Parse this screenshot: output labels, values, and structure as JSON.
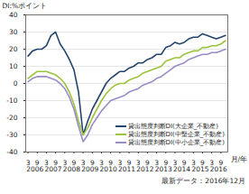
{
  "chart_data": {
    "type": "line",
    "ylabel": "DI:%ポイント",
    "xlabel": "月/年",
    "caption": "最新データ：2016年12月",
    "categories": [
      "3",
      null,
      "9",
      null,
      "3",
      null,
      "9",
      null,
      "3",
      null,
      "9",
      null,
      "3",
      null,
      "9",
      null,
      "3",
      null,
      "9",
      null,
      "3",
      null,
      "9",
      null,
      "3",
      null,
      "9",
      null,
      "3",
      null,
      "9",
      null,
      "3",
      null,
      "9",
      null,
      "3",
      null,
      "9",
      null,
      "3",
      null,
      "9",
      null
    ],
    "year_labels": [
      "2006",
      "2007",
      "2008",
      "2009",
      "2010",
      "2011",
      "2012",
      "2013",
      "2014",
      "2015",
      "2016"
    ],
    "series": [
      {
        "name": "貸出態度判断DI(大企業_不動産)",
        "color": "#24466e",
        "values": [
          16,
          19,
          20,
          20,
          22,
          28,
          30,
          23,
          19,
          14,
          8,
          -5,
          -30,
          -22,
          -15,
          -10,
          -5,
          0,
          3,
          5,
          7,
          7,
          9,
          10,
          12,
          12,
          14,
          15,
          17,
          17,
          21,
          22,
          24,
          23,
          24,
          26,
          27,
          27,
          29,
          28,
          27,
          26,
          27,
          28
        ]
      },
      {
        "name": "貸出態度判断DI(中堅企業_不動産)",
        "color": "#9cc43c",
        "values": [
          3,
          5,
          7,
          7,
          7,
          6,
          5,
          3,
          0,
          -5,
          -12,
          -22,
          -30,
          -26,
          -20,
          -15,
          -10,
          -6,
          -3,
          -1,
          0,
          0,
          2,
          3,
          4,
          6,
          7,
          8,
          9,
          10,
          13,
          14,
          15,
          15,
          17,
          18,
          19,
          19,
          21,
          21,
          22,
          22,
          23,
          25
        ]
      },
      {
        "name": "貸出態度判断DI(中小企業_不動産)",
        "color": "#9a8cc6",
        "values": [
          1,
          3,
          4,
          4,
          4,
          3,
          2,
          0,
          -3,
          -8,
          -15,
          -25,
          -34,
          -30,
          -24,
          -20,
          -16,
          -13,
          -10,
          -9,
          -8,
          -7,
          -5,
          -4,
          -3,
          -1,
          0,
          1,
          3,
          4,
          6,
          8,
          10,
          11,
          12,
          14,
          15,
          16,
          17,
          17,
          18,
          18,
          19,
          20
        ]
      }
    ],
    "ylim": [
      -40,
      40
    ],
    "yticks": [
      -40,
      -30,
      -20,
      -10,
      0,
      10,
      20,
      30,
      40
    ],
    "grid": true,
    "legend": "lower right"
  }
}
